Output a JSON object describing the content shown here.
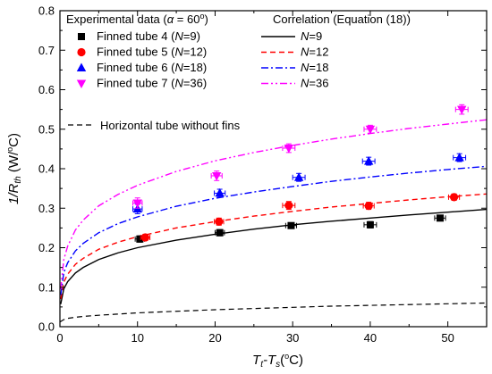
{
  "chart_data": {
    "type": "scatter",
    "xlim": [
      0,
      55
    ],
    "ylim": [
      0.0,
      0.8
    ],
    "x_ticks": [
      0,
      10,
      20,
      30,
      40,
      50
    ],
    "y_ticks": [
      0.0,
      0.1,
      0.2,
      0.3,
      0.4,
      0.5,
      0.6,
      0.7,
      0.8
    ],
    "x_tick_labels": [
      "0",
      "10",
      "20",
      "30",
      "40",
      "50"
    ],
    "y_tick_labels": [
      "0.0",
      "0.1",
      "0.2",
      "0.3",
      "0.4",
      "0.5",
      "0.6",
      "0.7",
      "0.8"
    ],
    "xlabel": {
      "main": "T",
      "sub1": "t",
      "dash": "-T",
      "sub2": "s",
      "unit": "(",
      "deg": "o",
      "unit_end": "C)"
    },
    "ylabel": {
      "main": "1/R",
      "sub": "th",
      "unit": " (W/",
      "deg": "o",
      "unit_end": "C)"
    },
    "legend_experimental": {
      "title_prefix": "Experimental data (",
      "title_alpha": "α",
      "title_mid": " = 60",
      "title_deg": "o",
      "title_suffix": ")"
    },
    "legend_correlation": {
      "title": "Correlation (Equation (18))"
    },
    "experimental_series": [
      {
        "name": "Finned tube 4 (N=9)",
        "label_prefix": "Finned tube 4 (",
        "label_N": "N",
        "label_suffix": "=9)",
        "color": "#000000",
        "marker": "square",
        "points": [
          {
            "x": 10.3,
            "y": 0.222,
            "xerr": 0.6,
            "yerr": 0.008
          },
          {
            "x": 20.6,
            "y": 0.238,
            "xerr": 0.6,
            "yerr": 0.008
          },
          {
            "x": 29.8,
            "y": 0.256,
            "xerr": 0.7,
            "yerr": 0.007
          },
          {
            "x": 40.0,
            "y": 0.258,
            "xerr": 0.8,
            "yerr": 0.008
          },
          {
            "x": 49.0,
            "y": 0.275,
            "xerr": 0.7,
            "yerr": 0.007
          }
        ]
      },
      {
        "name": "Finned tube 5 (N=12)",
        "label_prefix": "Finned tube 5 (",
        "label_N": "N",
        "label_suffix": "=12)",
        "color": "#ff0000",
        "marker": "circle",
        "points": [
          {
            "x": 11.0,
            "y": 0.226,
            "xerr": 0.6,
            "yerr": 0.008
          },
          {
            "x": 20.5,
            "y": 0.266,
            "xerr": 0.6,
            "yerr": 0.009
          },
          {
            "x": 29.5,
            "y": 0.307,
            "xerr": 0.8,
            "yerr": 0.01
          },
          {
            "x": 39.8,
            "y": 0.306,
            "xerr": 0.7,
            "yerr": 0.009
          },
          {
            "x": 50.8,
            "y": 0.328,
            "xerr": 0.7,
            "yerr": 0.008
          }
        ]
      },
      {
        "name": "Finned tube 6 (N=18)",
        "label_prefix": "Finned tube 6 (",
        "label_N": "N",
        "label_suffix": "=18)",
        "color": "#0000ff",
        "marker": "triangle-up",
        "points": [
          {
            "x": 10.0,
            "y": 0.298,
            "xerr": 0.6,
            "yerr": 0.012
          },
          {
            "x": 20.6,
            "y": 0.338,
            "xerr": 0.7,
            "yerr": 0.01
          },
          {
            "x": 30.8,
            "y": 0.378,
            "xerr": 0.8,
            "yerr": 0.01
          },
          {
            "x": 39.8,
            "y": 0.419,
            "xerr": 0.8,
            "yerr": 0.01
          },
          {
            "x": 51.5,
            "y": 0.428,
            "xerr": 0.8,
            "yerr": 0.01
          }
        ]
      },
      {
        "name": "Finned tube 7 (N=36)",
        "label_prefix": "Finned tube 7 (",
        "label_N": "N",
        "label_suffix": "=36)",
        "color": "#ff00ff",
        "marker": "triangle-down",
        "points": [
          {
            "x": 10.0,
            "y": 0.313,
            "xerr": 0.6,
            "yerr": 0.013
          },
          {
            "x": 20.2,
            "y": 0.382,
            "xerr": 0.7,
            "yerr": 0.012
          },
          {
            "x": 29.5,
            "y": 0.452,
            "xerr": 0.8,
            "yerr": 0.011
          },
          {
            "x": 40.0,
            "y": 0.5,
            "xerr": 0.8,
            "yerr": 0.01
          },
          {
            "x": 51.8,
            "y": 0.55,
            "xerr": 0.8,
            "yerr": 0.012
          }
        ]
      }
    ],
    "correlation_series": [
      {
        "name": "N=9",
        "label_N": "N",
        "label_suffix": "=9",
        "color": "#000000",
        "dash": "solid",
        "x": [
          0.1,
          0.5,
          1,
          2,
          3,
          5,
          7.5,
          10,
          15,
          20,
          25,
          30,
          35,
          40,
          45,
          50,
          55
        ],
        "y": [
          0.057,
          0.096,
          0.114,
          0.136,
          0.15,
          0.17,
          0.187,
          0.2,
          0.219,
          0.234,
          0.247,
          0.258,
          0.267,
          0.275,
          0.283,
          0.29,
          0.297
        ]
      },
      {
        "name": "N=12",
        "label_N": "N",
        "label_suffix": "=12",
        "color": "#ff0000",
        "dash": "dashed",
        "x": [
          0.1,
          0.5,
          1,
          2,
          3,
          5,
          7.5,
          10,
          15,
          20,
          25,
          30,
          35,
          40,
          45,
          50,
          55
        ],
        "y": [
          0.07,
          0.113,
          0.133,
          0.158,
          0.173,
          0.196,
          0.214,
          0.228,
          0.25,
          0.266,
          0.28,
          0.292,
          0.303,
          0.312,
          0.321,
          0.329,
          0.336
        ]
      },
      {
        "name": "N=18",
        "label_N": "N",
        "label_suffix": "=18",
        "color": "#0000ff",
        "dash": "dashdot",
        "x": [
          0.1,
          0.5,
          1,
          2,
          3,
          5,
          7.5,
          10,
          15,
          20,
          25,
          30,
          35,
          40,
          45,
          50,
          55
        ],
        "y": [
          0.08,
          0.137,
          0.162,
          0.192,
          0.211,
          0.238,
          0.261,
          0.278,
          0.305,
          0.325,
          0.341,
          0.355,
          0.368,
          0.379,
          0.389,
          0.398,
          0.406
        ]
      },
      {
        "name": "N=36",
        "label_N": "N",
        "label_suffix": "=36",
        "color": "#ff00ff",
        "dash": "dashdotdot",
        "x": [
          0.1,
          0.5,
          1,
          2,
          3,
          5,
          7.5,
          10,
          15,
          20,
          25,
          30,
          35,
          40,
          45,
          50,
          55
        ],
        "y": [
          0.095,
          0.17,
          0.204,
          0.245,
          0.27,
          0.306,
          0.335,
          0.358,
          0.393,
          0.42,
          0.441,
          0.459,
          0.475,
          0.489,
          0.502,
          0.513,
          0.524
        ]
      }
    ],
    "reference_series": {
      "name": "Horizontal tube without fins",
      "color": "#000000",
      "dash": "dashed",
      "x": [
        0,
        0.5,
        1,
        2,
        3,
        5,
        10,
        15,
        20,
        25,
        30,
        35,
        40,
        45,
        50,
        55
      ],
      "y": [
        0.012,
        0.018,
        0.021,
        0.024,
        0.026,
        0.029,
        0.035,
        0.039,
        0.043,
        0.046,
        0.049,
        0.052,
        0.054,
        0.056,
        0.058,
        0.06
      ]
    },
    "grid": false,
    "legend_placement": "top-left and top-right, inside plot"
  }
}
